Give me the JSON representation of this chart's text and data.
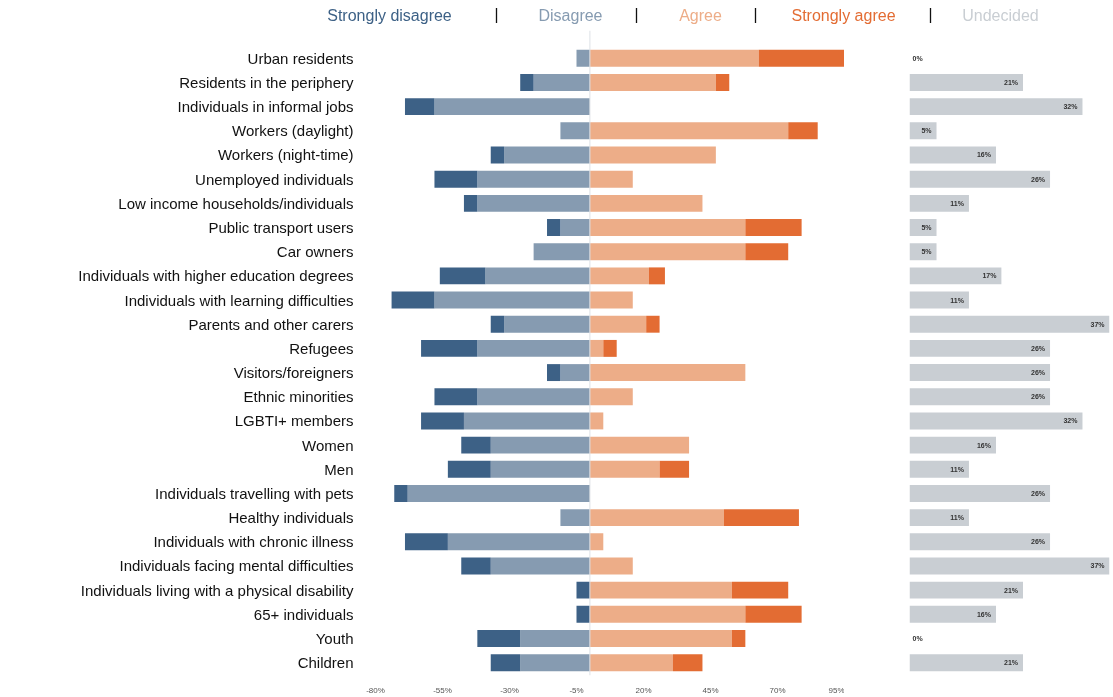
{
  "chart_data": [
    {
      "type": "bar",
      "orientation": "horizontal",
      "stacked": true,
      "legend": "top",
      "categories": [
        "Urban residents",
        "Residents in the periphery",
        "Individuals in informal jobs",
        "Workers (daylight)",
        "Workers (night-time)",
        "Unemployed individuals",
        "Low income households/individuals",
        "Public transport users",
        "Car owners",
        "Individuals with higher education degrees",
        "Individuals with learning difficulties",
        "Parents and other carers",
        "Refugees",
        "Visitors/foreigners",
        "Ethnic minorities",
        "LGBTI+ members",
        "Women",
        "Men",
        "Individuals travelling with pets",
        "Healthy individuals",
        "Individuals with chronic illness",
        "Individuals facing mental difficulties",
        "Individuals living with a physical disability",
        "65+ individuals",
        "Youth",
        "Children"
      ],
      "series": [
        {
          "name": "Disagree",
          "color": "#869bb1",
          "values": [
            -5,
            -21,
            -58,
            -11,
            -32,
            -42,
            -42,
            -11,
            -21,
            -39,
            -58,
            -32,
            -42,
            -11,
            -42,
            -47,
            -37,
            -37,
            -68,
            -11,
            -53,
            -37,
            0,
            0,
            -26,
            -26
          ]
        },
        {
          "name": "Strongly disagree",
          "color": "#3d6186",
          "values": [
            0,
            -5,
            -11,
            0,
            -5,
            -16,
            -5,
            -5,
            0,
            -17,
            -16,
            -5,
            -21,
            -5,
            -16,
            -16,
            -11,
            -16,
            -5,
            0,
            -16,
            -11,
            -5,
            -5,
            -16,
            -11
          ]
        },
        {
          "name": "Agree",
          "color": "#edad88",
          "values": [
            63,
            47,
            0,
            74,
            47,
            16,
            42,
            58,
            58,
            22,
            16,
            21,
            5,
            58,
            16,
            5,
            37,
            26,
            0,
            50,
            5,
            16,
            53,
            58,
            53,
            31
          ]
        },
        {
          "name": "Strongly agree",
          "color": "#e36c33",
          "values": [
            32,
            5,
            0,
            11,
            0,
            0,
            0,
            21,
            16,
            6,
            0,
            5,
            5,
            0,
            0,
            0,
            0,
            11,
            0,
            28,
            0,
            0,
            21,
            21,
            5,
            11
          ]
        }
      ],
      "xlim": [
        -80,
        95
      ],
      "xticks": [
        {
          "value": -80,
          "label": "-80%"
        },
        {
          "value": -55,
          "label": "-55%"
        },
        {
          "value": -30,
          "label": "-30%"
        },
        {
          "value": -5,
          "label": "-5%"
        },
        {
          "value": 20,
          "label": "20%"
        },
        {
          "value": 45,
          "label": "45%"
        },
        {
          "value": 70,
          "label": "70%"
        },
        {
          "value": 95,
          "label": "95%"
        }
      ],
      "ref_lines": [
        {
          "axis": "x",
          "value": 0,
          "color": "#dde1e6"
        }
      ]
    },
    {
      "type": "bar",
      "orientation": "horizontal",
      "legend": "top",
      "tick_labels": false,
      "categories": [
        null,
        null,
        null,
        null,
        null,
        null,
        null,
        null,
        null,
        null,
        null,
        null,
        null,
        null,
        null,
        null,
        null,
        null,
        null,
        null,
        null,
        null,
        null,
        null,
        null,
        null
      ],
      "series": [
        {
          "name": "Undecided",
          "color": "#c9ced3",
          "values": [
            0,
            21,
            32,
            5,
            16,
            26,
            11,
            5,
            5,
            17,
            11,
            37,
            26,
            26,
            26,
            32,
            16,
            11,
            26,
            11,
            26,
            37,
            21,
            16,
            0,
            21
          ],
          "value_labels": [
            "0%",
            "21%",
            "32%",
            "5%",
            "16%",
            "26%",
            "11%",
            "5%",
            "5%",
            "17%",
            "11%",
            "37%",
            "26%",
            "26%",
            "26%",
            "32%",
            "16%",
            "11%",
            "26%",
            "11%",
            "26%",
            "37%",
            "21%",
            "16%",
            "0%",
            "21%"
          ]
        }
      ],
      "xlim": [
        0,
        37
      ]
    }
  ]
}
